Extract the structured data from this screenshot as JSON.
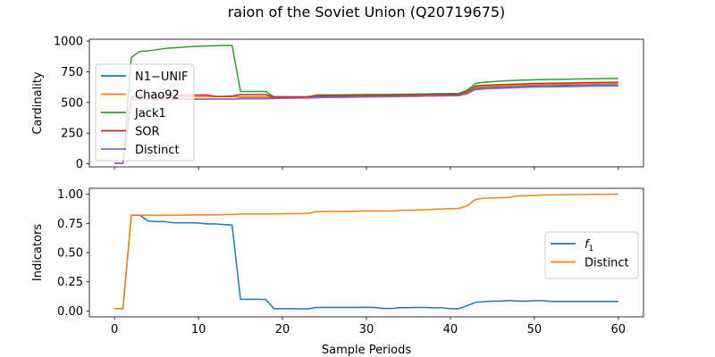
{
  "title": "raion of the Soviet Union (Q20719675)",
  "colors": {
    "blue": "#1f77b4",
    "orange": "#ff7f0e",
    "green": "#2ca02c",
    "red": "#d62728",
    "purple": "#9467bd"
  },
  "chart_data": [
    {
      "type": "line",
      "ylabel": "Cardinality",
      "xlim": [
        -3,
        63
      ],
      "ylim": [
        -25,
        1015
      ],
      "xticks": [
        0,
        10,
        20,
        30,
        40,
        50,
        60
      ],
      "xtick_labels_visible": false,
      "yticks": [
        0,
        250,
        500,
        750,
        1000
      ],
      "ytick_labels": [
        "0",
        "250",
        "500",
        "750",
        "1000"
      ],
      "grid": false,
      "legend_position": "center-left",
      "x": [
        0,
        1,
        2,
        3,
        4,
        5,
        6,
        7,
        8,
        9,
        10,
        11,
        12,
        13,
        14,
        15,
        16,
        17,
        18,
        19,
        20,
        21,
        22,
        23,
        24,
        25,
        26,
        27,
        28,
        29,
        30,
        31,
        32,
        33,
        34,
        35,
        36,
        37,
        38,
        39,
        40,
        41,
        42,
        43,
        44,
        45,
        46,
        47,
        48,
        49,
        50,
        51,
        52,
        53,
        54,
        55,
        56,
        57,
        58,
        59,
        60
      ],
      "series": [
        {
          "name": "N1−UNIF",
          "color": "#1f77b4",
          "values": [
            5,
            5,
            525,
            527,
            528,
            528,
            528,
            528,
            528,
            528,
            528,
            528,
            528,
            528,
            528,
            535,
            535,
            535,
            535,
            538,
            538,
            538,
            538,
            538,
            545,
            545,
            545,
            545,
            546,
            547,
            548,
            548,
            548,
            549,
            550,
            551,
            552,
            553,
            554,
            555,
            556,
            557,
            575,
            615,
            620,
            623,
            625,
            628,
            630,
            632,
            635,
            636,
            637,
            638,
            639,
            640,
            640,
            641,
            642,
            643,
            644
          ]
        },
        {
          "name": "Chao92",
          "color": "#ff7f0e",
          "values": [
            5,
            5,
            540,
            545,
            545,
            545,
            545,
            546,
            547,
            547,
            547,
            548,
            548,
            548,
            548,
            548,
            548,
            548,
            548,
            548,
            548,
            548,
            548,
            548,
            555,
            555,
            555,
            555,
            556,
            557,
            558,
            558,
            558,
            559,
            560,
            561,
            562,
            563,
            564,
            565,
            566,
            566,
            585,
            625,
            630,
            633,
            636,
            638,
            640,
            642,
            645,
            646,
            648,
            649,
            650,
            651,
            652,
            653,
            654,
            655,
            656
          ]
        },
        {
          "name": "Jack1",
          "color": "#2ca02c",
          "values": [
            5,
            5,
            870,
            915,
            920,
            930,
            940,
            945,
            950,
            955,
            958,
            960,
            962,
            965,
            965,
            590,
            590,
            590,
            590,
            545,
            545,
            545,
            545,
            545,
            560,
            562,
            562,
            562,
            563,
            564,
            565,
            565,
            565,
            566,
            567,
            568,
            569,
            570,
            571,
            572,
            573,
            574,
            600,
            655,
            665,
            670,
            675,
            678,
            680,
            682,
            685,
            687,
            688,
            689,
            690,
            691,
            692,
            693,
            694,
            695,
            696
          ]
        },
        {
          "name": "SOR",
          "color": "#d62728",
          "values": [
            5,
            5,
            545,
            555,
            555,
            556,
            557,
            558,
            559,
            560,
            560,
            561,
            550,
            550,
            552,
            565,
            565,
            565,
            565,
            545,
            545,
            545,
            545,
            545,
            555,
            555,
            555,
            555,
            556,
            557,
            558,
            558,
            558,
            559,
            560,
            561,
            562,
            563,
            564,
            565,
            566,
            566,
            590,
            635,
            640,
            643,
            646,
            648,
            650,
            652,
            655,
            656,
            657,
            658,
            659,
            660,
            661,
            662,
            663,
            664,
            665
          ]
        },
        {
          "name": "Distinct",
          "color": "#9467bd",
          "values": [
            5,
            5,
            520,
            522,
            524,
            525,
            526,
            527,
            527,
            527,
            527,
            528,
            528,
            528,
            528,
            530,
            530,
            530,
            530,
            532,
            533,
            534,
            535,
            536,
            538,
            540,
            540,
            541,
            542,
            543,
            544,
            545,
            546,
            547,
            548,
            549,
            550,
            551,
            552,
            553,
            554,
            555,
            570,
            605,
            610,
            613,
            615,
            618,
            620,
            622,
            625,
            626,
            627,
            628,
            629,
            630,
            631,
            632,
            633,
            634,
            635
          ]
        }
      ]
    },
    {
      "type": "line",
      "xlabel": "Sample Periods",
      "ylabel": "Indicators",
      "xlim": [
        -3,
        63
      ],
      "ylim": [
        -0.05,
        1.05
      ],
      "xticks": [
        0,
        10,
        20,
        30,
        40,
        50,
        60
      ],
      "xtick_labels": [
        "0",
        "10",
        "20",
        "30",
        "40",
        "50",
        "60"
      ],
      "yticks": [
        0,
        0.25,
        0.5,
        0.75,
        1.0
      ],
      "ytick_labels": [
        "0.00",
        "0.25",
        "0.50",
        "0.75",
        "1.00"
      ],
      "grid": false,
      "legend_position": "center-right",
      "x": [
        0,
        1,
        2,
        3,
        4,
        5,
        6,
        7,
        8,
        9,
        10,
        11,
        12,
        13,
        14,
        15,
        16,
        17,
        18,
        19,
        20,
        21,
        22,
        23,
        24,
        25,
        26,
        27,
        28,
        29,
        30,
        31,
        32,
        33,
        34,
        35,
        36,
        37,
        38,
        39,
        40,
        41,
        42,
        43,
        44,
        45,
        46,
        47,
        48,
        49,
        50,
        51,
        52,
        53,
        54,
        55,
        56,
        57,
        58,
        59,
        60
      ],
      "series": [
        {
          "name": "f1",
          "legend_label": "f",
          "legend_sub": "1",
          "color": "#1f77b4",
          "values": [
            0.02,
            0.02,
            0.82,
            0.82,
            0.77,
            0.765,
            0.765,
            0.755,
            0.755,
            0.755,
            0.753,
            0.745,
            0.745,
            0.74,
            0.735,
            0.1,
            0.1,
            0.1,
            0.098,
            0.02,
            0.02,
            0.02,
            0.018,
            0.018,
            0.03,
            0.03,
            0.03,
            0.03,
            0.03,
            0.031,
            0.031,
            0.03,
            0.022,
            0.022,
            0.028,
            0.028,
            0.03,
            0.03,
            0.027,
            0.027,
            0.02,
            0.02,
            0.045,
            0.075,
            0.08,
            0.085,
            0.085,
            0.09,
            0.085,
            0.085,
            0.088,
            0.088,
            0.082,
            0.082,
            0.082,
            0.082,
            0.082,
            0.082,
            0.082,
            0.082,
            0.082
          ]
        },
        {
          "name": "Distinct",
          "legend_label": "Distinct",
          "legend_sub": "",
          "color": "#ff7f0e",
          "values": [
            0.02,
            0.02,
            0.82,
            0.82,
            0.82,
            0.82,
            0.82,
            0.82,
            0.82,
            0.822,
            0.822,
            0.822,
            0.822,
            0.825,
            0.826,
            0.83,
            0.83,
            0.83,
            0.83,
            0.83,
            0.832,
            0.833,
            0.833,
            0.835,
            0.85,
            0.852,
            0.852,
            0.852,
            0.853,
            0.854,
            0.855,
            0.855,
            0.855,
            0.856,
            0.862,
            0.863,
            0.864,
            0.866,
            0.87,
            0.873,
            0.876,
            0.878,
            0.9,
            0.955,
            0.965,
            0.968,
            0.97,
            0.972,
            0.985,
            0.987,
            0.988,
            0.993,
            0.994,
            0.995,
            0.996,
            0.997,
            0.997,
            0.998,
            0.998,
            0.999,
            1.0
          ]
        }
      ]
    }
  ]
}
